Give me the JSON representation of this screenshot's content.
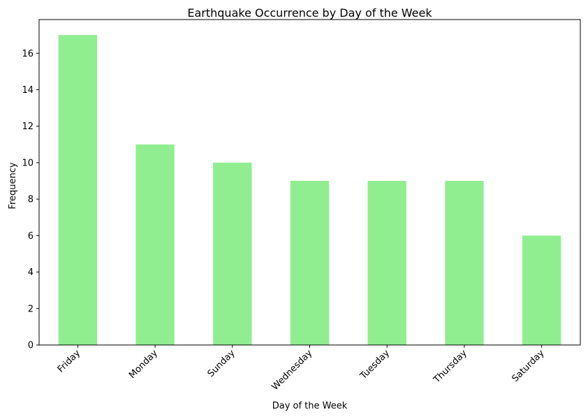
{
  "chart_data": {
    "type": "bar",
    "title": "Earthquake Occurrence by Day of the Week",
    "xlabel": "Day of the Week",
    "ylabel": "Frequency",
    "categories": [
      "Friday",
      "Monday",
      "Sunday",
      "Wednesday",
      "Tuesday",
      "Thursday",
      "Saturday"
    ],
    "values": [
      17,
      11,
      10,
      9,
      9,
      9,
      6
    ],
    "ylim": [
      0,
      17.85
    ],
    "yticks": [
      0,
      2,
      4,
      6,
      8,
      10,
      12,
      14,
      16
    ],
    "bar_color": "#90ee90",
    "grid": false,
    "legend": null
  }
}
